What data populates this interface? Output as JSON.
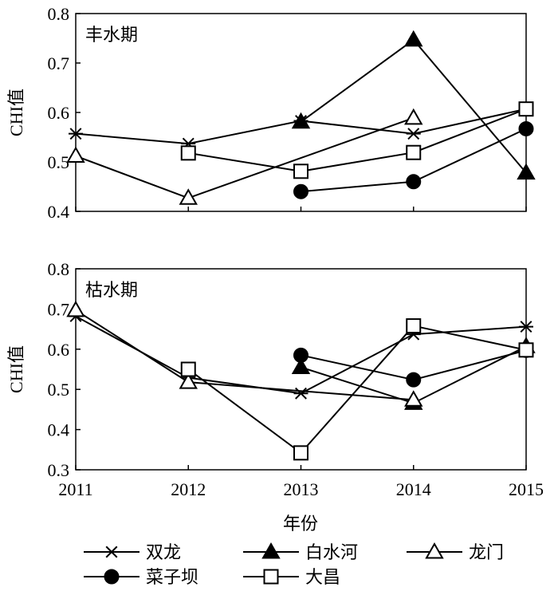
{
  "chart_data": {
    "type": "line",
    "categories": [
      "2011",
      "2012",
      "2013",
      "2014",
      "2015"
    ],
    "xlabel": "年份",
    "ylabel": "CHI值",
    "legend_placement": "bottom",
    "grid": false,
    "series_styles": [
      {
        "name": "双龙",
        "marker": "star"
      },
      {
        "name": "白水河",
        "marker": "triangle-filled"
      },
      {
        "name": "龙门",
        "marker": "triangle-open"
      },
      {
        "name": "菜子坝",
        "marker": "circle-filled"
      },
      {
        "name": "大昌",
        "marker": "square-open"
      }
    ],
    "panels": [
      {
        "title": "丰水期",
        "ylim": [
          0.4,
          0.8
        ],
        "yticks": [
          "0.4",
          "0.5",
          "0.6",
          "0.7",
          "0.8"
        ],
        "series": [
          {
            "name": "双龙",
            "values": [
              0.557,
              0.537,
              0.583,
              0.557,
              0.607
            ]
          },
          {
            "name": "白水河",
            "values": [
              null,
              null,
              0.581,
              0.747,
              0.478
            ]
          },
          {
            "name": "龙门",
            "values": [
              0.512,
              0.427,
              null,
              0.589,
              null
            ]
          },
          {
            "name": "菜子坝",
            "values": [
              null,
              null,
              0.44,
              0.46,
              0.567
            ]
          },
          {
            "name": "大昌",
            "values": [
              null,
              0.518,
              0.481,
              0.519,
              0.607
            ]
          }
        ]
      },
      {
        "title": "枯水期",
        "ylim": [
          0.3,
          0.8
        ],
        "yticks": [
          "0.3",
          "0.4",
          "0.5",
          "0.6",
          "0.7",
          "0.8"
        ],
        "series": [
          {
            "name": "双龙",
            "values": [
              0.682,
              0.529,
              0.49,
              0.637,
              0.656
            ]
          },
          {
            "name": "白水河",
            "values": [
              null,
              null,
              0.555,
              0.466,
              0.607
            ]
          },
          {
            "name": "龙门",
            "values": [
              0.697,
              0.518,
              null,
              0.474,
              null
            ]
          },
          {
            "name": "菜子坝",
            "values": [
              null,
              null,
              0.585,
              0.524,
              0.597
            ]
          },
          {
            "name": "大昌",
            "values": [
              null,
              0.55,
              0.342,
              0.658,
              0.598
            ]
          }
        ]
      }
    ]
  }
}
